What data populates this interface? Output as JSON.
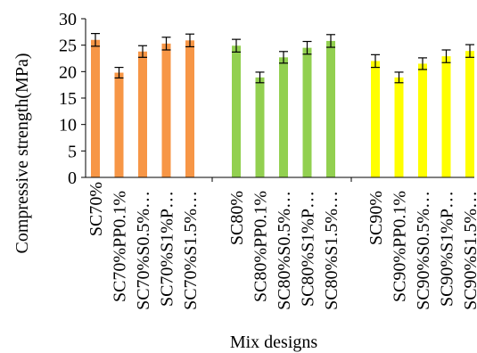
{
  "chart_data": {
    "type": "bar",
    "title": "",
    "xlabel": "Mix designs",
    "ylabel": "Compressive strength(MPa)",
    "ylim": [
      0,
      30
    ],
    "yticks": [
      0,
      5,
      10,
      15,
      20,
      25,
      30
    ],
    "grid": false,
    "legend": "none",
    "groups": [
      {
        "color": "#F79646",
        "categories": [
          "SC70%",
          "SC70%PP0.1%",
          "SC70%S0.5%…",
          "SC70%S1%P…",
          "SC70%S1.5%…"
        ],
        "values": [
          26.0,
          19.8,
          23.8,
          25.3,
          25.9
        ],
        "errors": [
          1.2,
          1.0,
          1.1,
          1.2,
          1.2
        ]
      },
      {
        "color": "#92D050",
        "categories": [
          "SC80%",
          "SC80%PP0.1%",
          "SC80%S0.5%…",
          "SC80%S1%P…",
          "SC80%S1.5%…"
        ],
        "values": [
          24.9,
          18.9,
          22.7,
          24.5,
          25.8
        ],
        "errors": [
          1.2,
          1.0,
          1.1,
          1.2,
          1.2
        ]
      },
      {
        "color": "#FFFF00",
        "categories": [
          "SC90%",
          "SC90%PP0.1%",
          "SC90%S0.5%…",
          "SC90%S1%P…",
          "SC90%S1.5%…"
        ],
        "values": [
          22.0,
          18.9,
          21.5,
          22.9,
          23.9
        ],
        "errors": [
          1.2,
          1.0,
          1.1,
          1.2,
          1.2
        ]
      }
    ]
  }
}
